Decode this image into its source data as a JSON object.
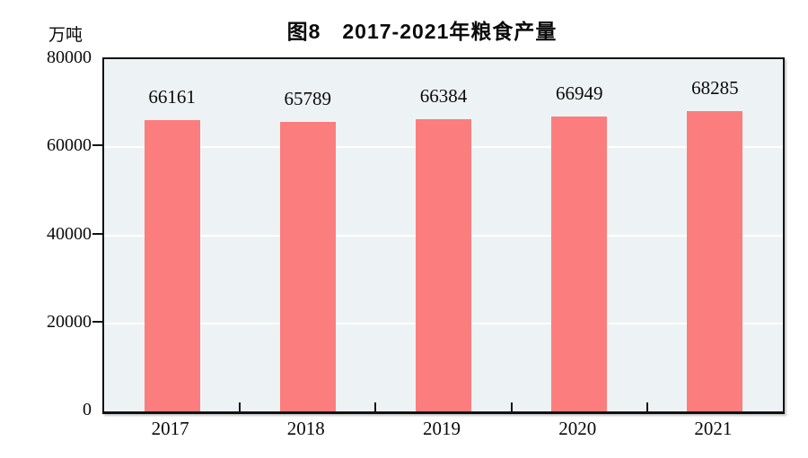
{
  "chart_data": {
    "type": "bar",
    "title": "图8　2017-2021年粮食产量",
    "ylabel": "万吨",
    "xlabel": "",
    "categories": [
      "2017",
      "2018",
      "2019",
      "2020",
      "2021"
    ],
    "values": [
      66161,
      65789,
      66384,
      66949,
      68285
    ],
    "ylim": [
      0,
      80000
    ],
    "yticks": [
      0,
      20000,
      40000,
      60000,
      80000
    ],
    "grid": "horizontal-white-lines",
    "legend": "none",
    "bar_color": "#FC7D7D",
    "plot_bg": "#EDF3F5",
    "axis_color": "#121212",
    "text_color": "#0a0a0a"
  }
}
